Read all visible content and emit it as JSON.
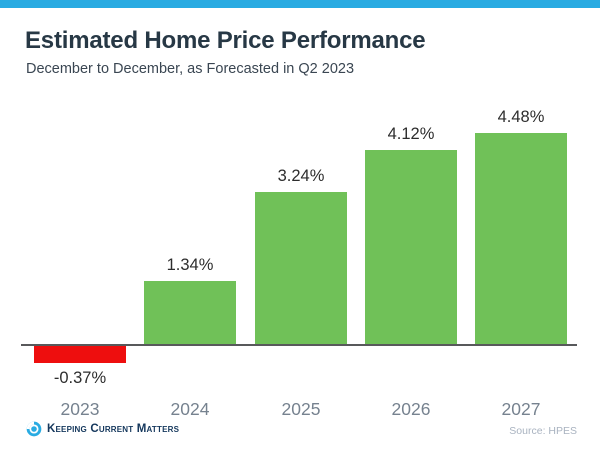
{
  "page": {
    "topbar_color": "#29ABE2",
    "background": "#ffffff"
  },
  "header": {
    "title": "Estimated Home Price Performance",
    "subtitle": "December to December, as Forecasted in Q2 2023",
    "title_color": "#273845",
    "subtitle_color": "#3A4652"
  },
  "chart_data": {
    "type": "bar",
    "title": "Estimated Home Price Performance",
    "subtitle": "December to December, as Forecasted in Q2 2023",
    "categories": [
      "2023",
      "2024",
      "2025",
      "2026",
      "2027"
    ],
    "values": [
      -0.37,
      1.34,
      3.24,
      4.12,
      4.48
    ],
    "value_labels": [
      "-0.37%",
      "1.34%",
      "3.24%",
      "4.12%",
      "4.48%"
    ],
    "xlabel": "",
    "ylabel": "",
    "ylim": [
      -0.8,
      5.0
    ],
    "grid": false,
    "legend": null,
    "positive_color": "#70C158",
    "negative_color": "#EE0E0E",
    "axis_line_color": "#58595B",
    "value_label_color": "#2D2D2D",
    "category_label_color": "#76828F"
  },
  "footer": {
    "brand": "Keeping Current Matters",
    "brand_color": "#14375C",
    "logo_icon": "kcm-swirl-icon",
    "logo_color": "#29ABE2",
    "source": "Source: HPES",
    "source_color": "#A9B3C0"
  }
}
